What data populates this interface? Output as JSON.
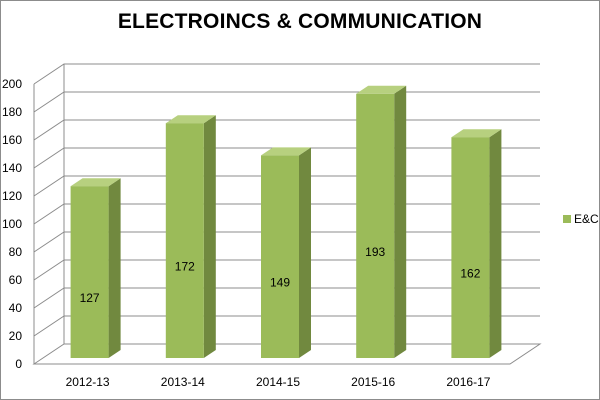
{
  "chart_data": {
    "type": "bar",
    "title": "ELECTROINCS & COMMUNICATION",
    "categories": [
      "2012-13",
      "2013-14",
      "2014-15",
      "2015-16",
      "2016-17"
    ],
    "series": [
      {
        "name": "E&C",
        "values": [
          127,
          172,
          149,
          193,
          162
        ]
      }
    ],
    "ylim": [
      0,
      200
    ],
    "yticks": [
      0,
      20,
      40,
      60,
      80,
      100,
      120,
      140,
      160,
      180,
      200
    ],
    "grid": true,
    "legend_position": "right",
    "colors": {
      "bar_front": "#9bbb59",
      "bar_side": "#71893f",
      "bar_top": "#b7d07f",
      "grid": "#8c8c8c"
    }
  }
}
